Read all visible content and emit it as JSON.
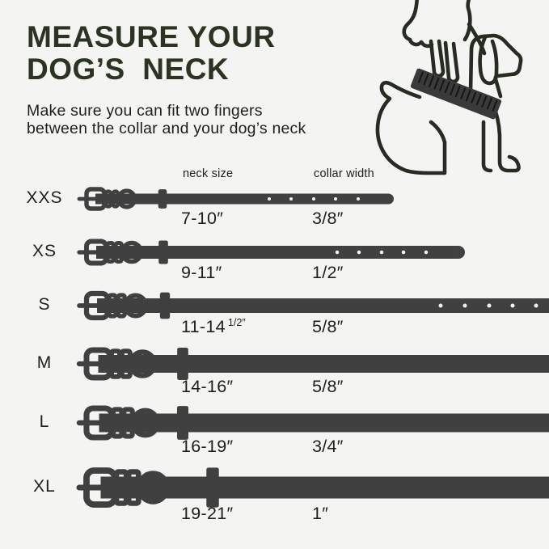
{
  "header": {
    "title_line1": "MEASURE YOUR",
    "title_line2": "DOG’S  NECK",
    "subtitle_line1": "Make sure you can fit two fingers",
    "subtitle_line2": "between the collar and your dog’s neck"
  },
  "illustration": {
    "icon": "dog-collar-measuring-hand-icon"
  },
  "table": {
    "col_neck": "neck size",
    "col_width": "collar width",
    "rows": [
      {
        "size": "XXS",
        "neck": "7-10″",
        "neck_sup": "",
        "width": "3/8″"
      },
      {
        "size": "XS",
        "neck": "9-11″",
        "neck_sup": "",
        "width": "1/2″"
      },
      {
        "size": "S",
        "neck": "11-14",
        "neck_sup": "1/2″",
        "width": "5/8″"
      },
      {
        "size": "M",
        "neck": "14-16″",
        "neck_sup": "",
        "width": "5/8″"
      },
      {
        "size": "L",
        "neck": "16-19″",
        "neck_sup": "",
        "width": "3/4″"
      },
      {
        "size": "XL",
        "neck": "19-21″",
        "neck_sup": "",
        "width": "1″"
      }
    ]
  },
  "colors": {
    "background": "#f4f4f2",
    "title": "#2b3423",
    "text": "#1e1e1e",
    "collar": "#404040",
    "hole": "#f4f4f2",
    "line_art": "#262c22",
    "band": "#3a3a3a",
    "band_tick": "#151515"
  }
}
